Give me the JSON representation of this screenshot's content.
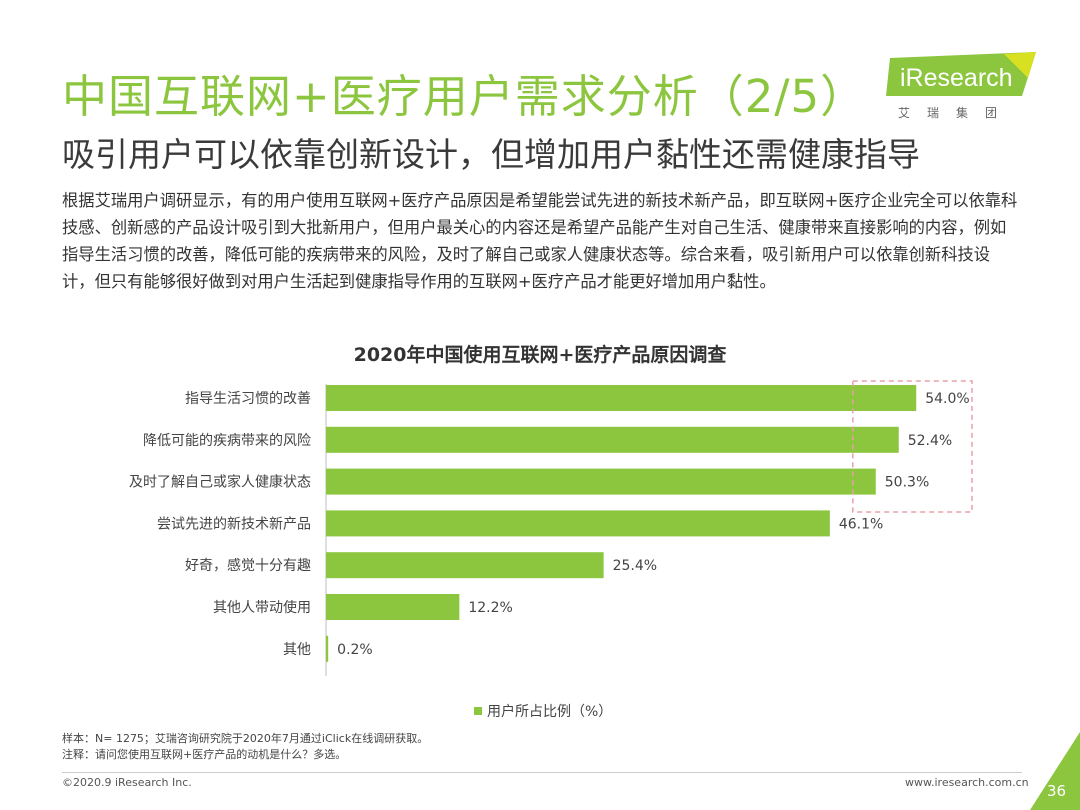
{
  "header": {
    "title": "中国互联网+医疗用户需求分析（2/5）",
    "subtitle": "吸引用户可以依靠创新设计，但增加用户黏性还需健康指导"
  },
  "logo": {
    "brand": "iResearch",
    "sub": "艾瑞集团",
    "colors": {
      "green": "#8cc63f",
      "yellow": "#d7e021"
    }
  },
  "intro": "根据艾瑞用户调研显示，有的用户使用互联网+医疗产品原因是希望能尝试先进的新技术新产品，即互联网+医疗企业完全可以依靠科技感、创新感的产品设计吸引到大批新用户，但用户最关心的内容还是希望产品能产生对自己生活、健康带来直接影响的内容，例如指导生活习惯的改善，降低可能的疾病带来的风险，及时了解自己或家人健康状态等。综合来看，吸引新用户可以依靠创新科技设计，但只有能够很好做到对用户生活起到健康指导作用的互联网+医疗产品才能更好增加用户黏性。",
  "chart_data": {
    "type": "bar",
    "orientation": "horizontal",
    "title": "2020年中国使用互联网+医疗产品原因调查",
    "categories": [
      "指导生活习惯的改善",
      "降低可能的疾病带来的风险",
      "及时了解自己或家人健康状态",
      "尝试先进的新技术新产品",
      "好奇，感觉十分有趣",
      "其他人带动使用",
      "其他"
    ],
    "series": [
      {
        "name": "用户所占比例（%）",
        "values": [
          54.0,
          52.4,
          50.3,
          46.1,
          25.4,
          12.2,
          0.2
        ]
      }
    ],
    "value_labels": [
      "54.0%",
      "52.4%",
      "50.3%",
      "46.1%",
      "25.4%",
      "12.2%",
      "0.2%"
    ],
    "xlim": [
      0,
      60
    ],
    "grid": false,
    "legend_position": "bottom",
    "highlight": "top three values boxed with dashed pink outline",
    "bar_color": "#8cc63f",
    "highlight_color": "#e8a0aa"
  },
  "notes": {
    "source": "样本：N= 1275；艾瑞咨询研究院于2020年7月通过iClick在线调研获取。",
    "note": "注释：请问您使用互联网+医疗产品的动机是什么？多选。"
  },
  "footer": {
    "copyright": "©2020.9 iResearch Inc.",
    "website": "www.iresearch.com.cn",
    "page": "36",
    "corner_color": "#8cc63f"
  }
}
